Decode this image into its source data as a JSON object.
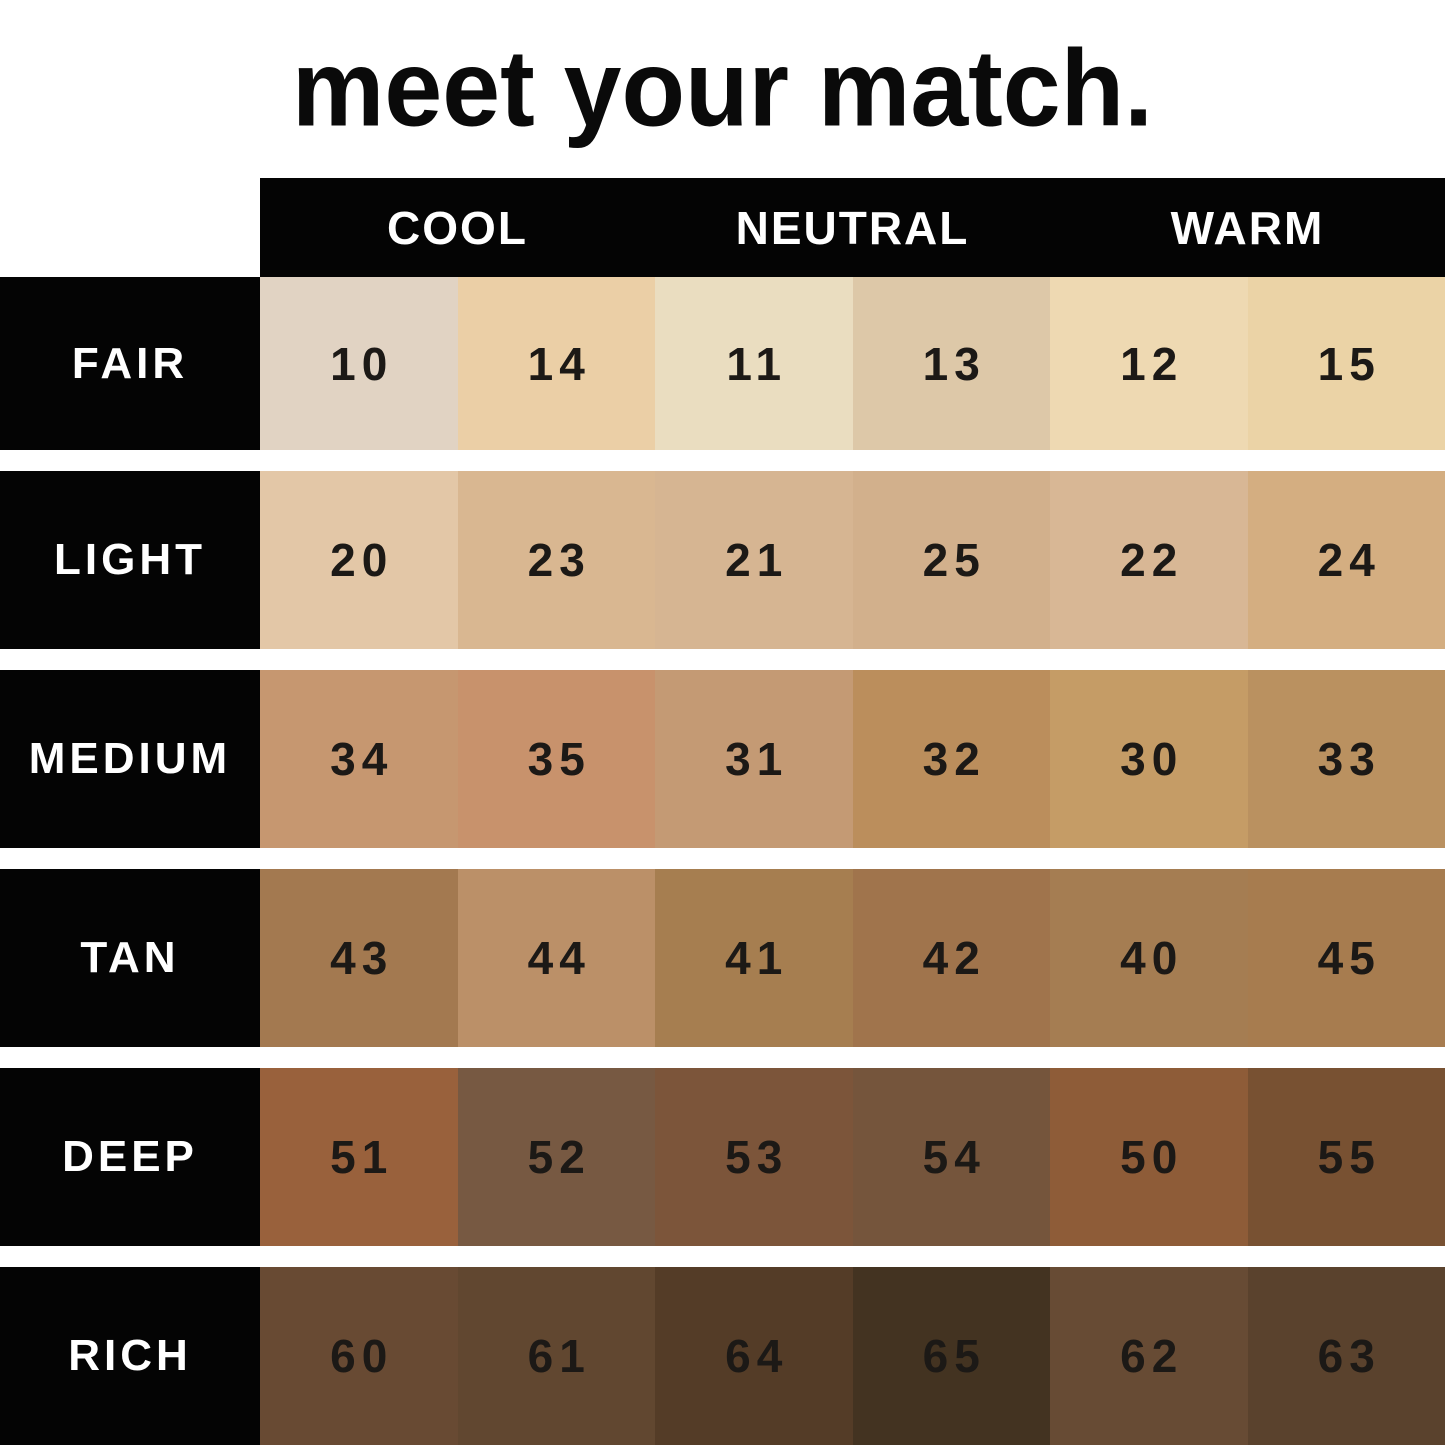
{
  "title": "meet your match.",
  "colors": {
    "background": "#ffffff",
    "header_bg": "#040404",
    "header_text": "#ffffff",
    "row_label_bg": "#040404",
    "row_label_text": "#ffffff",
    "shade_number_text": "#1c1916",
    "title_text": "#0a0a0a"
  },
  "chart_data": {
    "type": "table",
    "title": "meet your match.",
    "column_groups": [
      "COOL",
      "NEUTRAL",
      "WARM"
    ],
    "columns_per_group": 2,
    "undertone_by_column": [
      "COOL",
      "COOL",
      "NEUTRAL",
      "NEUTRAL",
      "WARM",
      "WARM"
    ],
    "rows": [
      {
        "label": "FAIR",
        "swatches": [
          {
            "shade": "10",
            "color": "#e1d3c3"
          },
          {
            "shade": "14",
            "color": "#ebcfa6"
          },
          {
            "shade": "11",
            "color": "#eaddc0"
          },
          {
            "shade": "13",
            "color": "#ddc8a8"
          },
          {
            "shade": "12",
            "color": "#eed9b2"
          },
          {
            "shade": "15",
            "color": "#ebd3a6"
          }
        ]
      },
      {
        "label": "LIGHT",
        "swatches": [
          {
            "shade": "20",
            "color": "#e3c7a7"
          },
          {
            "shade": "23",
            "color": "#d9b791"
          },
          {
            "shade": "21",
            "color": "#d6b592"
          },
          {
            "shade": "25",
            "color": "#d2b08c"
          },
          {
            "shade": "22",
            "color": "#d8b795"
          },
          {
            "shade": "24",
            "color": "#d4ae81"
          }
        ]
      },
      {
        "label": "MEDIUM",
        "swatches": [
          {
            "shade": "34",
            "color": "#c69770"
          },
          {
            "shade": "35",
            "color": "#c8926c"
          },
          {
            "shade": "31",
            "color": "#c49a74"
          },
          {
            "shade": "32",
            "color": "#bb8e5c"
          },
          {
            "shade": "30",
            "color": "#c59c66"
          },
          {
            "shade": "33",
            "color": "#ba9160"
          }
        ]
      },
      {
        "label": "TAN",
        "swatches": [
          {
            "shade": "43",
            "color": "#a37950"
          },
          {
            "shade": "44",
            "color": "#bb9068"
          },
          {
            "shade": "41",
            "color": "#a67e50"
          },
          {
            "shade": "42",
            "color": "#a0744c"
          },
          {
            "shade": "40",
            "color": "#a57d52"
          },
          {
            "shade": "45",
            "color": "#a77c4f"
          }
        ]
      },
      {
        "label": "DEEP",
        "swatches": [
          {
            "shade": "51",
            "color": "#99613c"
          },
          {
            "shade": "52",
            "color": "#775942"
          },
          {
            "shade": "53",
            "color": "#7c553a"
          },
          {
            "shade": "54",
            "color": "#75553c"
          },
          {
            "shade": "50",
            "color": "#8e5c38"
          },
          {
            "shade": "55",
            "color": "#785132"
          }
        ]
      },
      {
        "label": "RICH",
        "swatches": [
          {
            "shade": "60",
            "color": "#684a33"
          },
          {
            "shade": "61",
            "color": "#614730"
          },
          {
            "shade": "64",
            "color": "#543c27"
          },
          {
            "shade": "65",
            "color": "#433321"
          },
          {
            "shade": "62",
            "color": "#674b34"
          },
          {
            "shade": "63",
            "color": "#5a422d"
          }
        ]
      }
    ]
  }
}
